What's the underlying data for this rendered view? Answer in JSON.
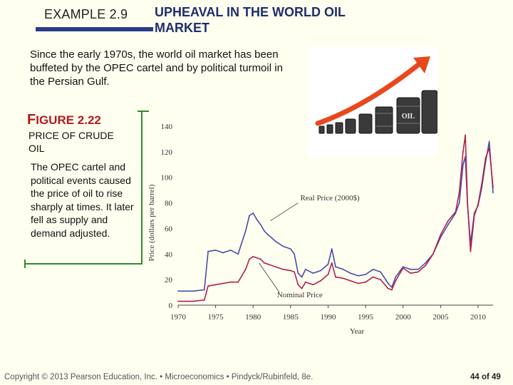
{
  "header": {
    "example_label": "EXAMPLE 2.9",
    "example_title": "UPHEAVAL IN THE WORLD OIL MARKET"
  },
  "intro_text": "Since the early 1970s, the world oil market has been buffeted by the OPEC cartel and by political turmoil in the Persian Gulf.",
  "figure": {
    "number_prefix": "F",
    "number_rest": "IGURE",
    "number_value": "2.22",
    "title": "PRICE OF CRUDE OIL",
    "description": "The OPEC cartel and political events caused the price of oil to rise sharply at times. It later fell as supply and demand adjusted."
  },
  "illustration": {
    "barrel_label": "OIL",
    "colors": {
      "arrow": "#e8481c",
      "barrel": "#3a3a3a"
    }
  },
  "chart_data": {
    "type": "line",
    "xlabel": "Year",
    "ylabel": "Price (dollars per barrel)",
    "xlim": [
      1970,
      2012
    ],
    "ylim": [
      0,
      140
    ],
    "xticks": [
      "1970",
      "1975",
      "1980",
      "1985",
      "1990",
      "1995",
      "2000",
      "2005",
      "2010"
    ],
    "yticks": [
      "0",
      "20",
      "40",
      "60",
      "80",
      "100",
      "120",
      "140"
    ],
    "annotations": [
      "Real Price (2000$)",
      "Nominal Price"
    ],
    "colors": {
      "real": "#4a4aa8",
      "nominal": "#b02050"
    },
    "series": [
      {
        "name": "Real Price (2000$)",
        "x": [
          1970,
          1972,
          1973.5,
          1974,
          1975,
          1976,
          1977,
          1978,
          1979,
          1979.5,
          1980,
          1980.5,
          1981,
          1981.5,
          1982,
          1983,
          1984,
          1985,
          1985.5,
          1986,
          1986.5,
          1987,
          1988,
          1989,
          1990,
          1990.5,
          1991,
          1992,
          1993,
          1994,
          1995,
          1996,
          1997,
          1998,
          1998.5,
          1999,
          2000,
          2001,
          2002,
          2003,
          2004,
          2005,
          2006,
          2007,
          2007.5,
          2008,
          2008.3,
          2008.6,
          2009,
          2009.5,
          2010,
          2010.5,
          2011,
          2011.5,
          2012
        ],
        "values": [
          11,
          11,
          12,
          42,
          43,
          41,
          43,
          40,
          58,
          70,
          72,
          67,
          63,
          58,
          55,
          50,
          46,
          44,
          40,
          25,
          22,
          28,
          25,
          27,
          32,
          44,
          30,
          28,
          25,
          23,
          24,
          28,
          26,
          17,
          14,
          22,
          30,
          28,
          28,
          33,
          40,
          53,
          63,
          72,
          80,
          110,
          116,
          78,
          48,
          72,
          78,
          92,
          112,
          128,
          88
        ]
      },
      {
        "name": "Nominal Price",
        "x": [
          1970,
          1972,
          1973.5,
          1974,
          1975,
          1976,
          1977,
          1978,
          1979,
          1979.5,
          1980,
          1980.5,
          1981,
          1981.5,
          1982,
          1983,
          1984,
          1985,
          1985.5,
          1986,
          1986.5,
          1987,
          1988,
          1989,
          1990,
          1990.5,
          1991,
          1992,
          1993,
          1994,
          1995,
          1996,
          1997,
          1998,
          1998.5,
          1999,
          2000,
          2001,
          2002,
          2003,
          2004,
          2005,
          2006,
          2007,
          2007.5,
          2008,
          2008.3,
          2008.6,
          2009,
          2009.5,
          2010,
          2010.5,
          2011,
          2011.5,
          2012
        ],
        "values": [
          3,
          3,
          4,
          15,
          16,
          17,
          18,
          18,
          28,
          36,
          38,
          37,
          36,
          33,
          32,
          30,
          28,
          27,
          26,
          16,
          13,
          18,
          16,
          19,
          24,
          33,
          22,
          21,
          19,
          17,
          18,
          22,
          20,
          13,
          12,
          19,
          29,
          25,
          26,
          31,
          40,
          55,
          66,
          73,
          88,
          120,
          133,
          80,
          42,
          70,
          79,
          95,
          115,
          123,
          92
        ]
      }
    ]
  },
  "footer": {
    "copyright": "Copyright © 2013 Pearson Education, Inc. • Microeconomics • Pindyck/Rubinfeld, 8e.",
    "page": "44 of 49"
  }
}
